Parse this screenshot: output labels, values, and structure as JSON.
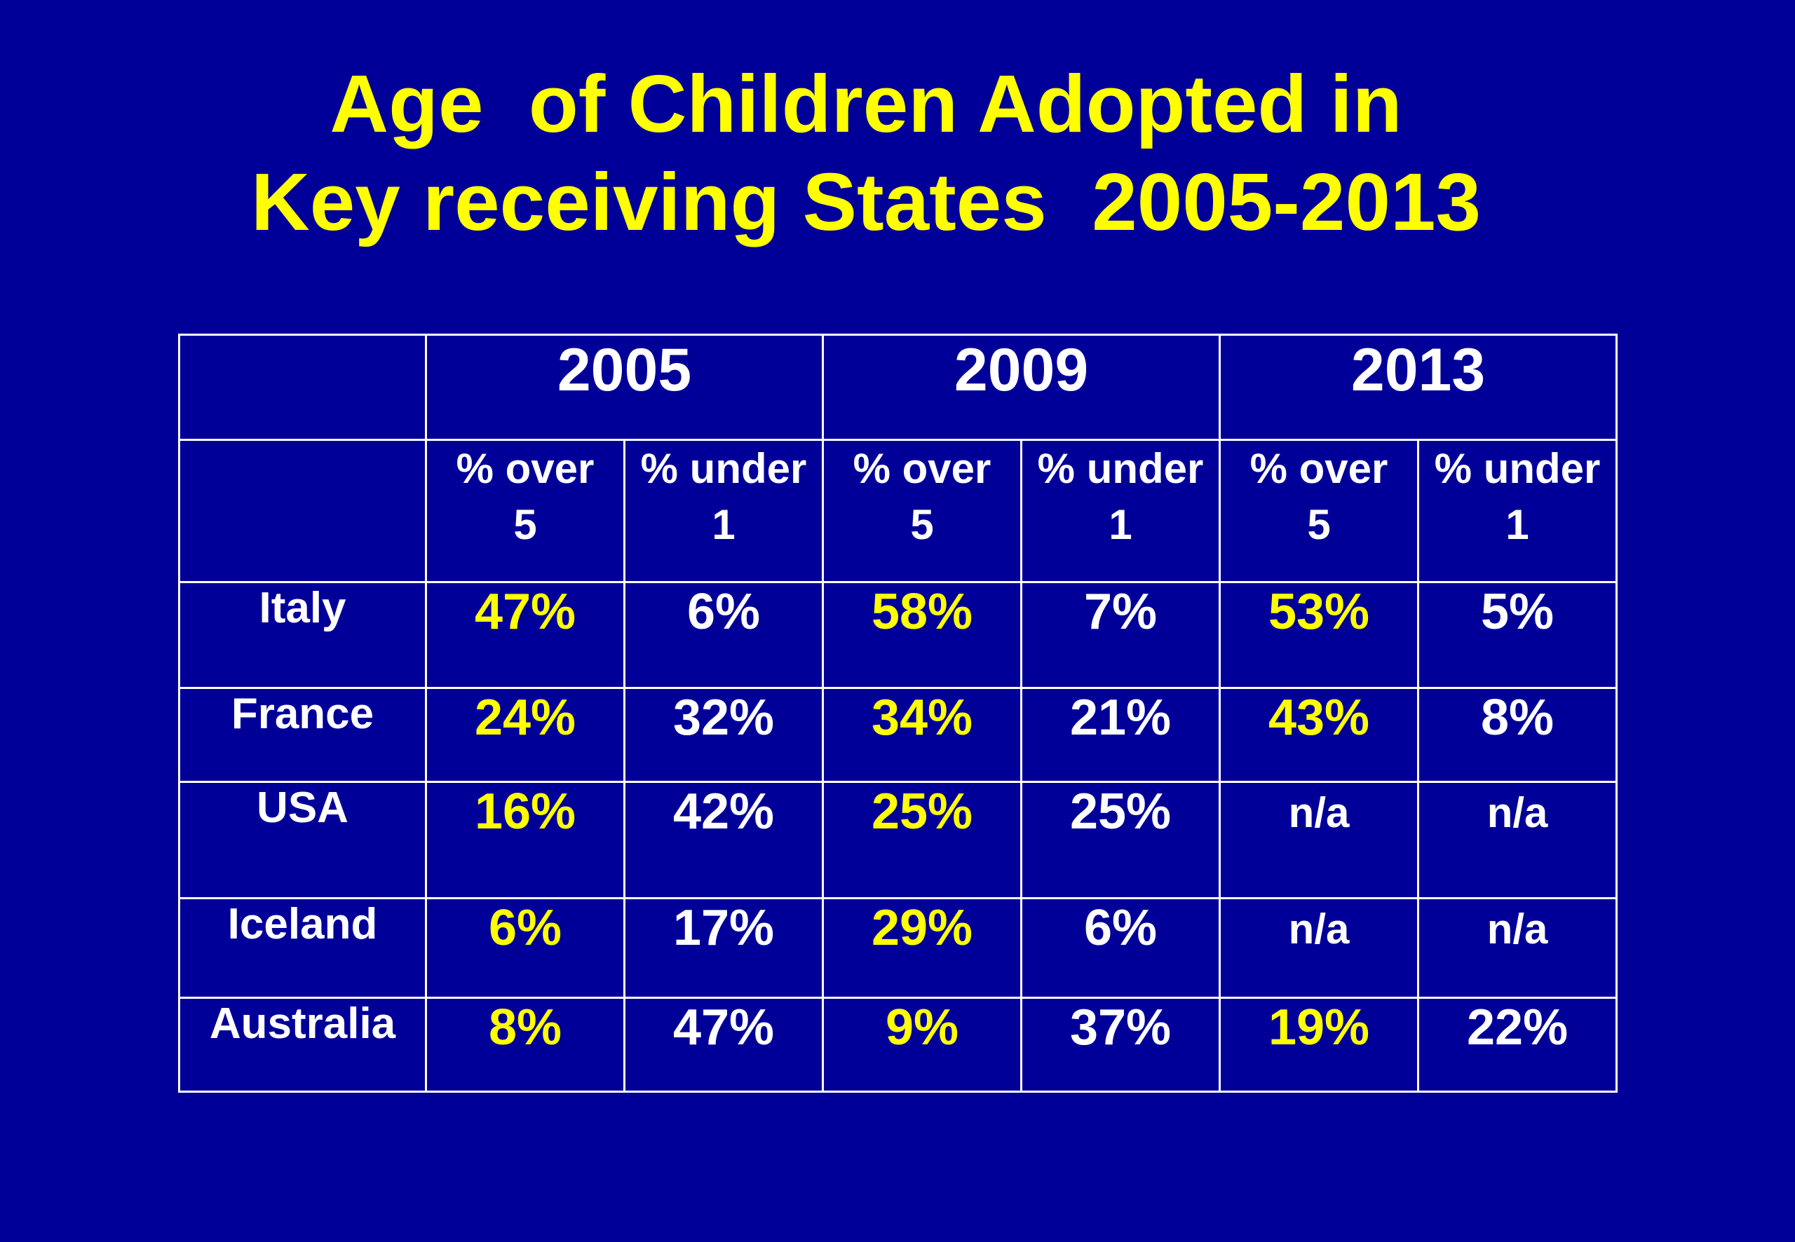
{
  "colors": {
    "background": "#000099",
    "highlight": "#ffff00",
    "text": "#ffffff"
  },
  "chart_data": {
    "type": "table",
    "title_lines": [
      "Age  of Children Adopted in",
      "Key receiving States  2005-2013"
    ],
    "years": [
      "2005",
      "2009",
      "2013"
    ],
    "subheaders": [
      [
        "% over",
        "5"
      ],
      [
        "% under",
        "1"
      ]
    ],
    "rows": [
      {
        "country": "Italy",
        "values": [
          "47%",
          "6%",
          "58%",
          "7%",
          "53%",
          "5%"
        ]
      },
      {
        "country": "France",
        "values": [
          "24%",
          "32%",
          "34%",
          "21%",
          "43%",
          "8%"
        ]
      },
      {
        "country": "USA",
        "values": [
          "16%",
          "42%",
          "25%",
          "25%",
          "n/a",
          "n/a"
        ]
      },
      {
        "country": "Iceland",
        "values": [
          "6%",
          "17%",
          "29%",
          "6%",
          "n/a",
          "n/a"
        ]
      },
      {
        "country": "Australia",
        "values": [
          "8%",
          "47%",
          "9%",
          "37%",
          "19%",
          "22%"
        ]
      }
    ]
  }
}
